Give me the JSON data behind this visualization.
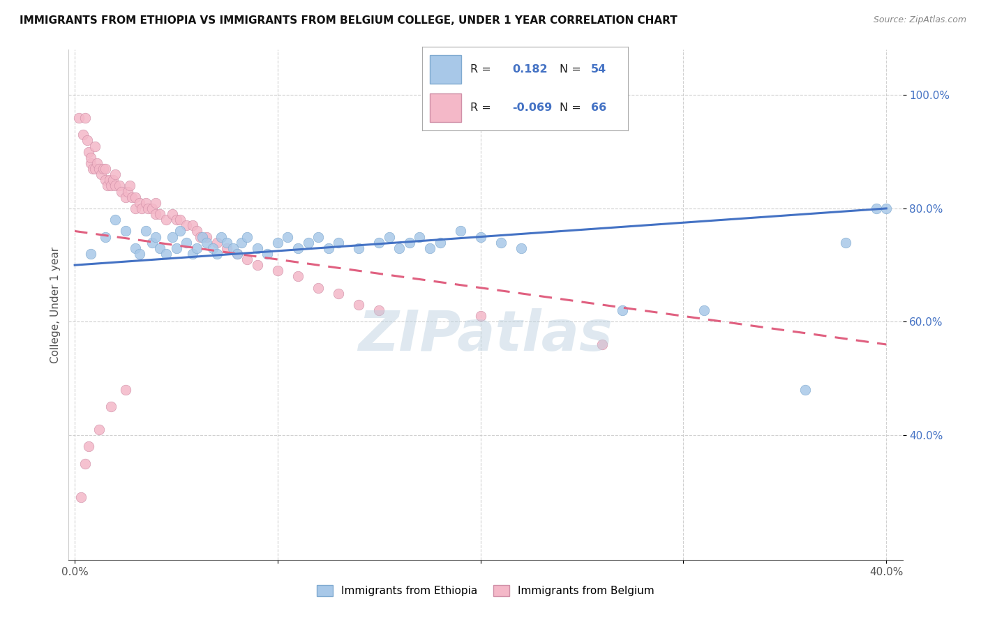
{
  "title": "IMMIGRANTS FROM ETHIOPIA VS IMMIGRANTS FROM BELGIUM COLLEGE, UNDER 1 YEAR CORRELATION CHART",
  "source": "Source: ZipAtlas.com",
  "ylabel": "College, Under 1 year",
  "xlim": [
    -0.003,
    0.408
  ],
  "ylim": [
    0.18,
    1.08
  ],
  "xticks": [
    0.0,
    0.1,
    0.2,
    0.3,
    0.4
  ],
  "xtick_labels": [
    "0.0%",
    "",
    "",
    "",
    "40.0%"
  ],
  "yticks": [
    0.4,
    0.6,
    0.8,
    1.0
  ],
  "ytick_labels": [
    "40.0%",
    "60.0%",
    "80.0%",
    "100.0%"
  ],
  "legend_R1": "0.182",
  "legend_N1": "54",
  "legend_R2": "-0.069",
  "legend_N2": "66",
  "color_ethiopia": "#a8c8e8",
  "color_belgium": "#f4b8c8",
  "color_line_ethiopia": "#4472c4",
  "color_line_belgium": "#e06080",
  "watermark": "ZIPatlas",
  "eth_x": [
    0.008,
    0.015,
    0.02,
    0.025,
    0.03,
    0.032,
    0.035,
    0.038,
    0.04,
    0.042,
    0.045,
    0.048,
    0.05,
    0.052,
    0.055,
    0.058,
    0.06,
    0.063,
    0.065,
    0.068,
    0.07,
    0.072,
    0.075,
    0.078,
    0.08,
    0.082,
    0.085,
    0.09,
    0.095,
    0.1,
    0.105,
    0.11,
    0.115,
    0.12,
    0.125,
    0.13,
    0.14,
    0.15,
    0.155,
    0.16,
    0.165,
    0.17,
    0.175,
    0.18,
    0.19,
    0.2,
    0.21,
    0.22,
    0.27,
    0.31,
    0.36,
    0.38,
    0.395,
    0.4
  ],
  "eth_y": [
    0.72,
    0.75,
    0.78,
    0.76,
    0.73,
    0.72,
    0.76,
    0.74,
    0.75,
    0.73,
    0.72,
    0.75,
    0.73,
    0.76,
    0.74,
    0.72,
    0.73,
    0.75,
    0.74,
    0.73,
    0.72,
    0.75,
    0.74,
    0.73,
    0.72,
    0.74,
    0.75,
    0.73,
    0.72,
    0.74,
    0.75,
    0.73,
    0.74,
    0.75,
    0.73,
    0.74,
    0.73,
    0.74,
    0.75,
    0.73,
    0.74,
    0.75,
    0.73,
    0.74,
    0.76,
    0.75,
    0.74,
    0.73,
    0.62,
    0.62,
    0.48,
    0.74,
    0.8,
    0.8
  ],
  "bel_x": [
    0.002,
    0.004,
    0.005,
    0.006,
    0.007,
    0.008,
    0.008,
    0.009,
    0.01,
    0.01,
    0.011,
    0.012,
    0.013,
    0.014,
    0.015,
    0.015,
    0.016,
    0.017,
    0.018,
    0.019,
    0.02,
    0.02,
    0.022,
    0.023,
    0.025,
    0.026,
    0.027,
    0.028,
    0.03,
    0.03,
    0.032,
    0.033,
    0.035,
    0.036,
    0.038,
    0.04,
    0.04,
    0.042,
    0.045,
    0.048,
    0.05,
    0.052,
    0.055,
    0.058,
    0.06,
    0.062,
    0.065,
    0.07,
    0.075,
    0.08,
    0.085,
    0.09,
    0.1,
    0.11,
    0.12,
    0.13,
    0.14,
    0.15,
    0.2,
    0.26,
    0.003,
    0.005,
    0.007,
    0.012,
    0.018,
    0.025
  ],
  "bel_y": [
    0.96,
    0.93,
    0.96,
    0.92,
    0.9,
    0.88,
    0.89,
    0.87,
    0.87,
    0.91,
    0.88,
    0.87,
    0.86,
    0.87,
    0.85,
    0.87,
    0.84,
    0.85,
    0.84,
    0.85,
    0.84,
    0.86,
    0.84,
    0.83,
    0.82,
    0.83,
    0.84,
    0.82,
    0.8,
    0.82,
    0.81,
    0.8,
    0.81,
    0.8,
    0.8,
    0.79,
    0.81,
    0.79,
    0.78,
    0.79,
    0.78,
    0.78,
    0.77,
    0.77,
    0.76,
    0.75,
    0.75,
    0.74,
    0.73,
    0.72,
    0.71,
    0.7,
    0.69,
    0.68,
    0.66,
    0.65,
    0.63,
    0.62,
    0.61,
    0.56,
    0.29,
    0.35,
    0.38,
    0.41,
    0.45,
    0.48
  ],
  "eth_line_x": [
    0.0,
    0.4
  ],
  "eth_line_y": [
    0.7,
    0.8
  ],
  "bel_line_x": [
    0.0,
    0.4
  ],
  "bel_line_y": [
    0.76,
    0.56
  ]
}
